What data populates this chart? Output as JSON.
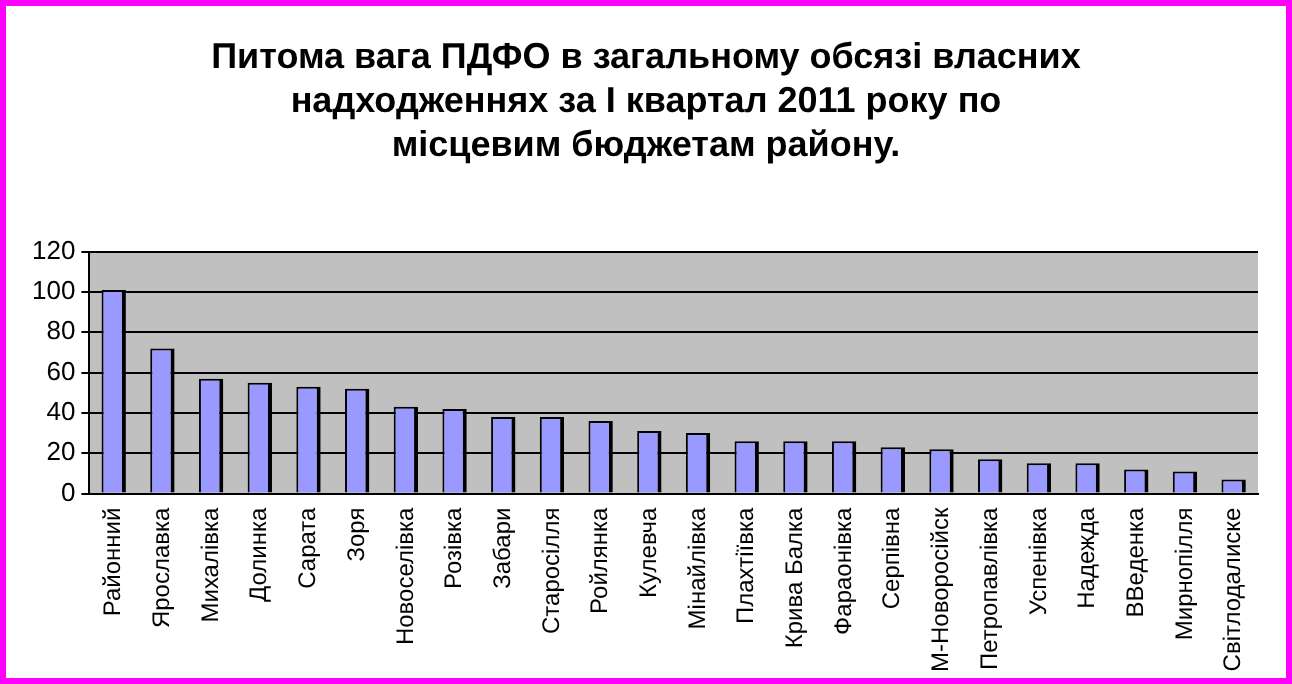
{
  "chart_data": {
    "type": "bar",
    "title": "Питома вага ПДФО в загальному обсязі власних надходженнях за І квартал 2011 року по місцевим бюджетам району.",
    "categories": [
      "Районний",
      "Ярославка",
      "Михалівка",
      "Долинка",
      "Сарата",
      "Зоря",
      "Новоселівка",
      "Розівка",
      "Забари",
      "Старосілля",
      "Ройлянка",
      "Кулевча",
      "Мінайлівка",
      "Плахтіївка",
      "Крива Балка",
      "Фараонівка",
      "Серпівна",
      "М-Новоросійск",
      "Петропавлівка",
      "Успенівка",
      "Надежда",
      "ВВеденка",
      "Мирнопілля",
      "Світлодалиске"
    ],
    "values": [
      101,
      72,
      57,
      55,
      53,
      52,
      43,
      42,
      38,
      38,
      36,
      31,
      30,
      26,
      26,
      26,
      23,
      22,
      17,
      15,
      15,
      12,
      11,
      7
    ],
    "color": "#9999ff",
    "ylim": [
      0,
      120
    ],
    "yticks": [
      0,
      20,
      40,
      60,
      80,
      100,
      120
    ],
    "grid": "y"
  }
}
